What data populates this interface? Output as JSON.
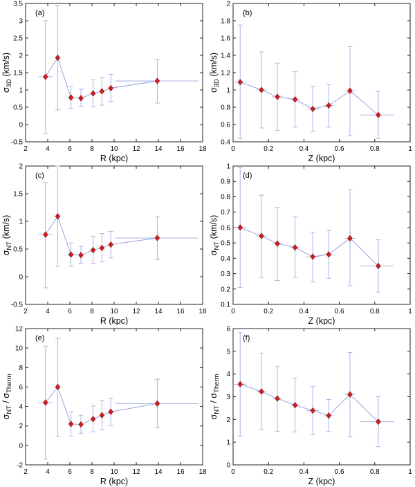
{
  "figure": {
    "background": "#ffffff"
  },
  "style": {
    "errorbar_color": "#a9b3e8",
    "line_color": "#8d99dd",
    "marker_fill": "#cc2020",
    "marker_edge": "#991111",
    "axis_color": "#222222",
    "text_color": "#000000"
  },
  "chart_data": [
    {
      "id": "a",
      "type": "line",
      "letter": "(a)",
      "xlabel": "R (kpc)",
      "ylabel_segments": [
        {
          "t": "σ"
        },
        {
          "s": "3D"
        },
        {
          "t": " (km/s)"
        }
      ],
      "xlim": [
        2,
        18
      ],
      "ylim": [
        -0.5,
        3.5
      ],
      "xticks": [
        2,
        4,
        6,
        8,
        10,
        12,
        14,
        16,
        18
      ],
      "xtick_labels": [
        "2",
        "4",
        "6",
        "8",
        "10",
        "12",
        "14",
        "16",
        "18"
      ],
      "yticks": [
        -0.5,
        0,
        0.5,
        1,
        1.5,
        2,
        2.5,
        3,
        3.5
      ],
      "ytick_labels": [
        "-0.5",
        "0",
        "0.5",
        "1",
        "1.5",
        "2",
        "2.5",
        "3",
        "3.5"
      ],
      "x": [
        3.8,
        4.9,
        6.1,
        7.0,
        8.1,
        8.9,
        9.7,
        13.9
      ],
      "y": [
        1.38,
        1.93,
        0.78,
        0.76,
        0.9,
        0.96,
        1.05,
        1.26
      ],
      "y_lo": [
        -0.25,
        0.42,
        0.46,
        0.53,
        0.51,
        0.56,
        0.67,
        0.62
      ],
      "y_hi": [
        3.0,
        3.45,
        1.1,
        1.02,
        1.29,
        1.37,
        1.45,
        1.89
      ],
      "x_lo": [
        3.15,
        4.8,
        5.95,
        6.85,
        7.95,
        8.75,
        9.55,
        10.1
      ],
      "x_hi": [
        4.45,
        5.0,
        6.25,
        7.15,
        8.25,
        9.05,
        9.85,
        17.6
      ]
    },
    {
      "id": "b",
      "type": "line",
      "letter": "(b)",
      "xlabel": "Z (kpc)",
      "ylabel_segments": [
        {
          "t": "σ"
        },
        {
          "s": "3D"
        },
        {
          "t": " (km/s)"
        }
      ],
      "xlim": [
        0,
        1
      ],
      "ylim": [
        0.4,
        2
      ],
      "xticks": [
        0,
        0.2,
        0.4,
        0.6,
        0.8,
        1
      ],
      "xtick_labels": [
        "0",
        "0.2",
        "0.4",
        "0.6",
        "0.8",
        "1"
      ],
      "yticks": [
        0.4,
        0.6,
        0.8,
        1,
        1.2,
        1.4,
        1.6,
        1.8,
        2
      ],
      "ytick_labels": [
        "0.4",
        "0.6",
        "0.8",
        "1",
        "1.2",
        "1.4",
        "1.6",
        "1.8",
        "2"
      ],
      "x": [
        0.04,
        0.16,
        0.25,
        0.35,
        0.45,
        0.54,
        0.66,
        0.82
      ],
      "y": [
        1.09,
        1.0,
        0.92,
        0.89,
        0.78,
        0.82,
        0.99,
        0.71
      ],
      "y_lo": [
        0.44,
        0.56,
        0.53,
        0.57,
        0.52,
        0.57,
        0.47,
        0.44
      ],
      "y_hi": [
        1.75,
        1.44,
        1.31,
        1.21,
        1.04,
        1.06,
        1.5,
        0.98
      ],
      "x_lo": [
        0.005,
        0.13,
        0.22,
        0.325,
        0.415,
        0.515,
        0.63,
        0.72
      ],
      "x_hi": [
        0.075,
        0.19,
        0.28,
        0.375,
        0.485,
        0.565,
        0.69,
        0.91
      ]
    },
    {
      "id": "c",
      "type": "line",
      "letter": "(c)",
      "xlabel": "R (kpc)",
      "ylabel_segments": [
        {
          "t": "σ"
        },
        {
          "s": "NT"
        },
        {
          "t": " (km/s)"
        }
      ],
      "xlim": [
        2,
        18
      ],
      "ylim": [
        -0.5,
        2
      ],
      "xticks": [
        2,
        4,
        6,
        8,
        10,
        12,
        14,
        16,
        18
      ],
      "xtick_labels": [
        "2",
        "4",
        "6",
        "8",
        "10",
        "12",
        "14",
        "16",
        "18"
      ],
      "yticks": [
        -0.5,
        0,
        0.5,
        1,
        1.5,
        2
      ],
      "ytick_labels": [
        "-0.5",
        "0",
        "0.5",
        "1",
        "1.5",
        "2"
      ],
      "x": [
        3.8,
        4.9,
        6.1,
        7.0,
        8.1,
        8.9,
        9.7,
        13.9
      ],
      "y": [
        0.76,
        1.09,
        0.4,
        0.39,
        0.48,
        0.52,
        0.58,
        0.7
      ],
      "y_lo": [
        -0.2,
        0.19,
        0.19,
        0.24,
        0.24,
        0.27,
        0.34,
        0.31
      ],
      "y_hi": [
        1.7,
        2.0,
        0.61,
        0.55,
        0.73,
        0.78,
        0.82,
        1.08
      ],
      "x_lo": [
        3.15,
        4.8,
        5.95,
        6.85,
        7.95,
        8.75,
        9.55,
        10.1
      ],
      "x_hi": [
        4.45,
        5.0,
        6.25,
        7.15,
        8.25,
        9.05,
        9.85,
        17.6
      ]
    },
    {
      "id": "d",
      "type": "line",
      "letter": "(d)",
      "xlabel": "Z (kpc)",
      "ylabel_segments": [
        {
          "t": "σ"
        },
        {
          "s": "NT"
        },
        {
          "t": " (km/s)"
        }
      ],
      "xlim": [
        0,
        1
      ],
      "ylim": [
        0.1,
        1
      ],
      "xticks": [
        0,
        0.2,
        0.4,
        0.6,
        0.8,
        1
      ],
      "xtick_labels": [
        "0",
        "0.2",
        "0.4",
        "0.6",
        "0.8",
        "1"
      ],
      "yticks": [
        0.1,
        0.2,
        0.3,
        0.4,
        0.5,
        0.6,
        0.7,
        0.8,
        0.9,
        1
      ],
      "ytick_labels": [
        "0.1",
        "0.2",
        "0.3",
        "0.4",
        "0.5",
        "0.6",
        "0.7",
        "0.8",
        "0.9",
        "1"
      ],
      "x": [
        0.04,
        0.16,
        0.25,
        0.35,
        0.45,
        0.54,
        0.66,
        0.82
      ],
      "y": [
        0.6,
        0.545,
        0.495,
        0.47,
        0.41,
        0.425,
        0.53,
        0.35
      ],
      "y_lo": [
        0.21,
        0.275,
        0.255,
        0.275,
        0.245,
        0.27,
        0.22,
        0.18
      ],
      "y_hi": [
        0.99,
        0.81,
        0.73,
        0.67,
        0.57,
        0.58,
        0.845,
        0.52
      ],
      "x_lo": [
        0.005,
        0.13,
        0.22,
        0.325,
        0.415,
        0.515,
        0.63,
        0.72
      ],
      "x_hi": [
        0.075,
        0.19,
        0.28,
        0.375,
        0.485,
        0.565,
        0.69,
        0.91
      ]
    },
    {
      "id": "e",
      "type": "line",
      "letter": "(e)",
      "xlabel": "R (kpc)",
      "ylabel_segments": [
        {
          "t": "σ"
        },
        {
          "s": "NT"
        },
        {
          "t": " / σ"
        },
        {
          "s": "Therm"
        }
      ],
      "xlim": [
        2,
        18
      ],
      "ylim": [
        -2,
        12
      ],
      "xticks": [
        2,
        4,
        6,
        8,
        10,
        12,
        14,
        16,
        18
      ],
      "xtick_labels": [
        "2",
        "4",
        "6",
        "8",
        "10",
        "12",
        "14",
        "16",
        "18"
      ],
      "yticks": [
        -2,
        0,
        2,
        4,
        6,
        8,
        10,
        12
      ],
      "ytick_labels": [
        "-2",
        "0",
        "2",
        "4",
        "6",
        "8",
        "10",
        "12"
      ],
      "x": [
        3.8,
        4.9,
        6.1,
        7.0,
        8.1,
        8.9,
        9.7,
        13.9
      ],
      "y": [
        4.4,
        6.0,
        2.2,
        2.15,
        2.7,
        3.1,
        3.45,
        4.3
      ],
      "y_lo": [
        -1.4,
        0.95,
        0.95,
        1.25,
        1.4,
        1.65,
        2.05,
        1.8
      ],
      "y_hi": [
        10.2,
        11.0,
        3.45,
        3.1,
        4.05,
        4.6,
        4.85,
        6.8
      ],
      "x_lo": [
        3.15,
        4.8,
        5.95,
        6.85,
        7.95,
        8.75,
        9.55,
        10.1
      ],
      "x_hi": [
        4.45,
        5.0,
        6.25,
        7.15,
        8.25,
        9.05,
        9.85,
        17.6
      ]
    },
    {
      "id": "f",
      "type": "line",
      "letter": "(f)",
      "xlabel": "Z (kpc)",
      "ylabel_segments": [
        {
          "t": "σ"
        },
        {
          "s": "NT"
        },
        {
          "t": " / σ"
        },
        {
          "s": "Therm"
        }
      ],
      "xlim": [
        0,
        1
      ],
      "ylim": [
        0,
        6
      ],
      "xticks": [
        0,
        0.2,
        0.4,
        0.6,
        0.8,
        1
      ],
      "xtick_labels": [
        "0",
        "0.2",
        "0.4",
        "0.6",
        "0.8",
        "1"
      ],
      "yticks": [
        0,
        1,
        2,
        3,
        4,
        5,
        6
      ],
      "ytick_labels": [
        "0",
        "1",
        "2",
        "3",
        "4",
        "5",
        "6"
      ],
      "x": [
        0.04,
        0.16,
        0.25,
        0.35,
        0.45,
        0.54,
        0.66,
        0.82
      ],
      "y": [
        3.55,
        3.23,
        2.92,
        2.63,
        2.39,
        2.17,
        3.1,
        1.9
      ],
      "y_lo": [
        1.27,
        1.57,
        1.48,
        1.45,
        1.33,
        1.47,
        1.23,
        0.8
      ],
      "y_hi": [
        5.82,
        4.92,
        4.33,
        3.82,
        3.45,
        2.88,
        4.95,
        3.0
      ],
      "x_lo": [
        0.005,
        0.13,
        0.22,
        0.325,
        0.415,
        0.515,
        0.63,
        0.72
      ],
      "x_hi": [
        0.075,
        0.19,
        0.28,
        0.375,
        0.485,
        0.565,
        0.69,
        0.91
      ]
    }
  ]
}
